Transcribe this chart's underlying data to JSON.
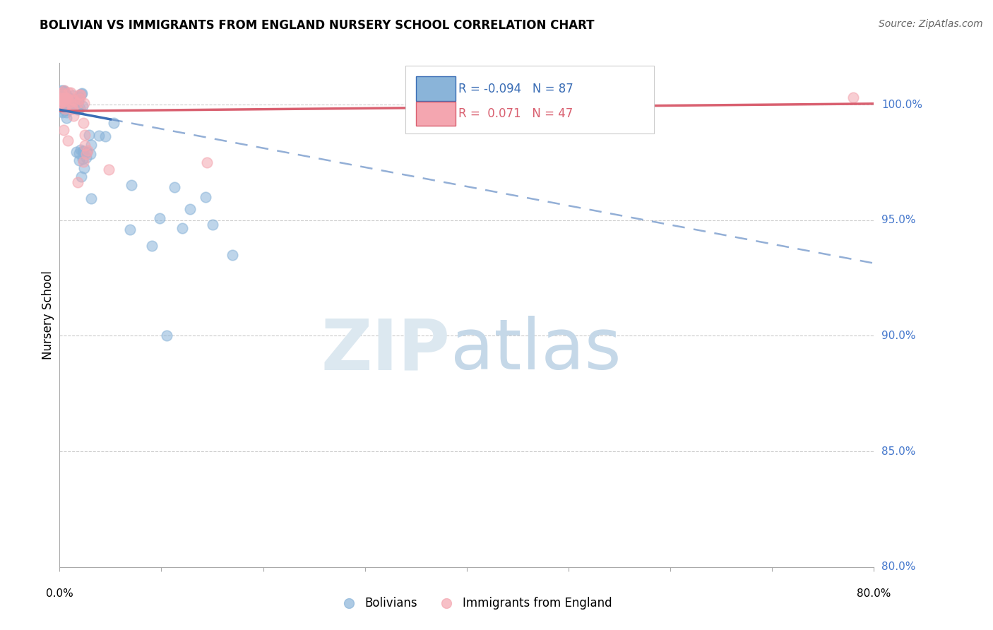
{
  "title": "BOLIVIAN VS IMMIGRANTS FROM ENGLAND NURSERY SCHOOL CORRELATION CHART",
  "source": "Source: ZipAtlas.com",
  "ylabel": "Nursery School",
  "xlim": [
    0.0,
    80.0
  ],
  "ylim": [
    80.0,
    101.8
  ],
  "yticks": [
    80.0,
    85.0,
    90.0,
    95.0,
    100.0
  ],
  "ytick_labels": [
    "80.0%",
    "85.0%",
    "90.0%",
    "95.0%",
    "100.0%"
  ],
  "blue_R": -0.094,
  "blue_N": 87,
  "pink_R": 0.071,
  "pink_N": 47,
  "blue_color": "#8ab4d9",
  "pink_color": "#f4a6b0",
  "blue_line_color": "#3a6db5",
  "pink_line_color": "#d96070",
  "blue_line_intercept": 99.78,
  "blue_line_slope": -0.083,
  "blue_solid_end": 5.0,
  "pink_line_intercept": 99.72,
  "pink_line_slope": 0.004,
  "watermark_zip_color": "#dce8f0",
  "watermark_atlas_color": "#c5d8e8"
}
